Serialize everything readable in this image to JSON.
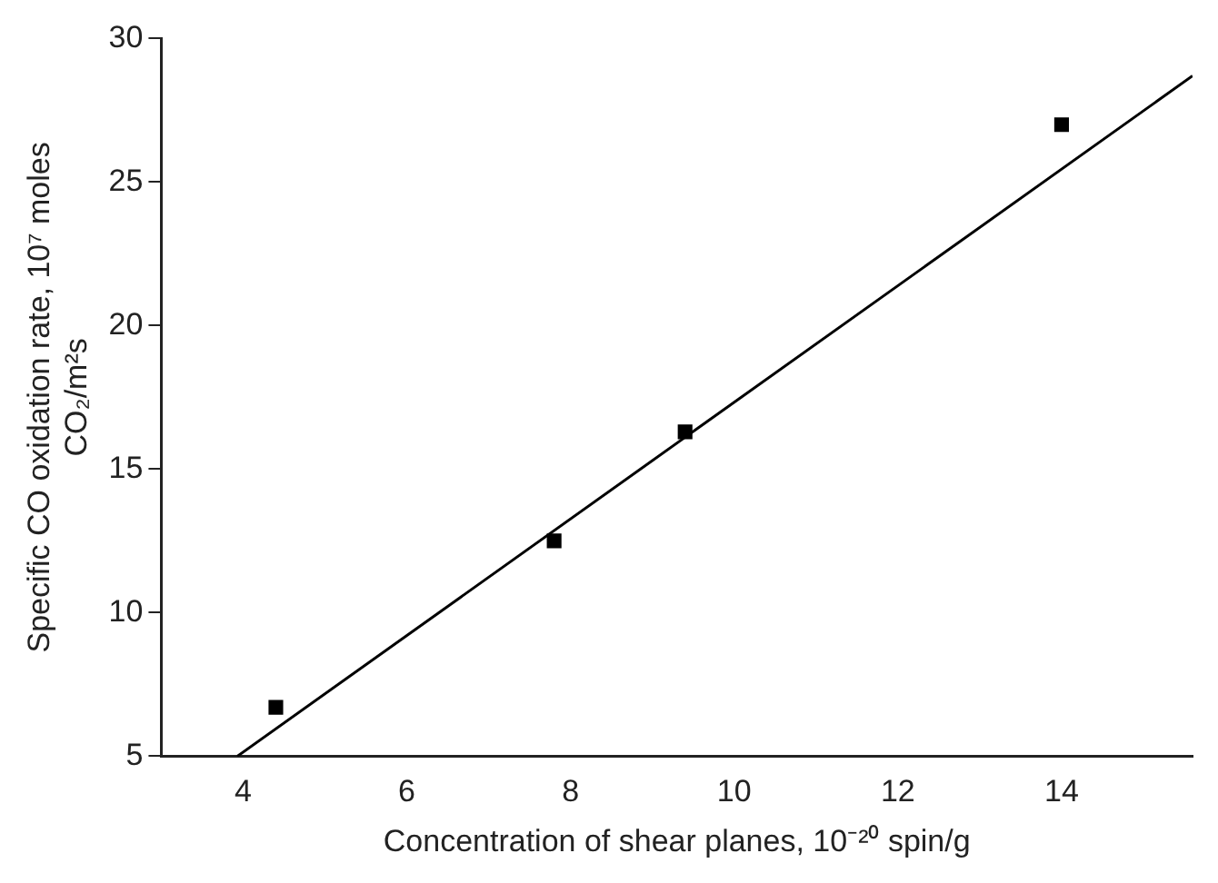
{
  "chart_data": {
    "type": "scatter",
    "xlabel": "Concentration of shear planes, 10⁻²⁰ spin/g",
    "ylabel": "Specific CO oxidation rate, 10⁷ moles CO₂/m²s",
    "xlim": [
      3,
      15.6
    ],
    "xticks": [
      4,
      6,
      8,
      10,
      12,
      14
    ],
    "ylim": [
      5,
      30
    ],
    "yticks": [
      5,
      10,
      15,
      20,
      25,
      30
    ],
    "grid": false,
    "legend": false,
    "series": [
      {
        "marker": "square",
        "color": "#000000",
        "x": [
          4.4,
          7.8,
          9.4,
          14.0
        ],
        "values": [
          6.7,
          12.5,
          16.3,
          27.0
        ]
      },
      {
        "type": "line",
        "color": "#000000",
        "x": [
          3.93,
          15.6
        ],
        "values": [
          5,
          28.7
        ]
      }
    ]
  }
}
